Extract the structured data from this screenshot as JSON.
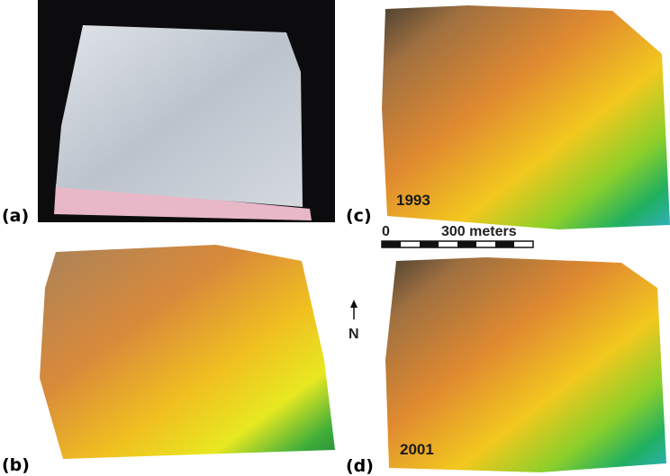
{
  "panels": [
    {
      "label": "(a)"
    },
    {
      "label": "(b)"
    },
    {
      "label": "(c)",
      "year": "1993"
    },
    {
      "label": "(d)",
      "year": "2001"
    }
  ],
  "scale_bar": {
    "start": "0",
    "end": "300 meters"
  },
  "north": "N"
}
